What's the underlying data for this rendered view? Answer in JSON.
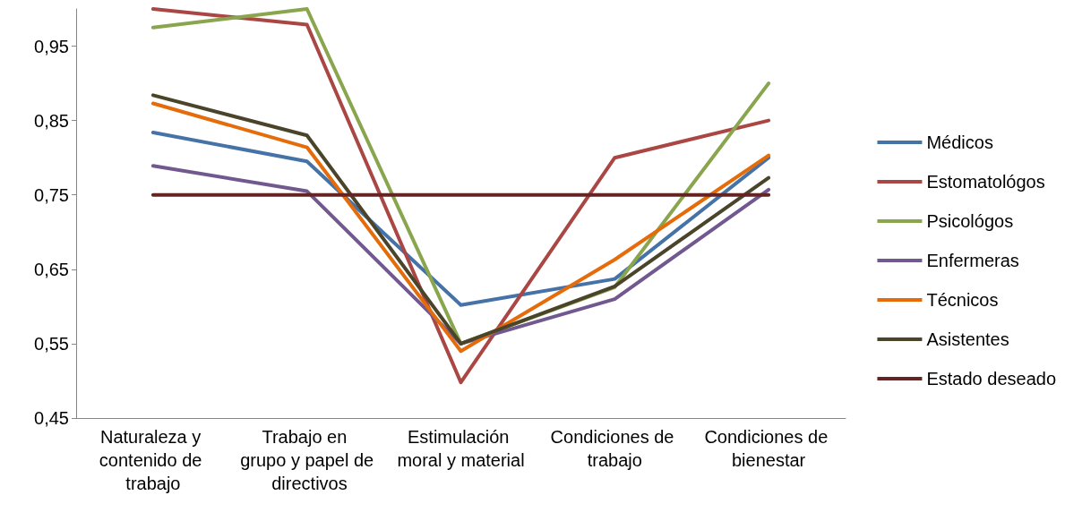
{
  "chart_data": {
    "type": "line",
    "categories": [
      "Naturaleza y contenido de trabajo",
      "Trabajo en grupo y papel de directivos",
      "Estimulación moral y material",
      "Condiciones de trabajo",
      "Condiciones de bienestar"
    ],
    "series": [
      {
        "name": "Médicos",
        "color": "#4572a7",
        "values": [
          0.834,
          0.795,
          0.602,
          0.637,
          0.8
        ]
      },
      {
        "name": "Estomatológos",
        "color": "#aa4643",
        "values": [
          1.0,
          0.979,
          0.498,
          0.8,
          0.85
        ]
      },
      {
        "name": "Psicológos",
        "color": "#89a54e",
        "values": [
          0.975,
          1.0,
          0.55,
          0.626,
          0.9
        ]
      },
      {
        "name": "Enfermeras",
        "color": "#71588f",
        "values": [
          0.789,
          0.755,
          0.55,
          0.61,
          0.757
        ]
      },
      {
        "name": "Técnicos",
        "color": "#e46c0a",
        "values": [
          0.873,
          0.814,
          0.54,
          0.663,
          0.803
        ]
      },
      {
        "name": "Asistentes",
        "color": "#4a452a",
        "values": [
          0.884,
          0.83,
          0.55,
          0.627,
          0.773
        ]
      },
      {
        "name": "Estado deseado",
        "color": "#632423",
        "values": [
          0.75,
          0.75,
          0.75,
          0.75,
          0.75
        ]
      }
    ],
    "ylim": [
      0.45,
      1.0
    ],
    "yticks": [
      {
        "value": 0.45,
        "label": "0,45"
      },
      {
        "value": 0.55,
        "label": "0,55"
      },
      {
        "value": 0.65,
        "label": "0,65"
      },
      {
        "value": 0.75,
        "label": "0,75"
      },
      {
        "value": 0.85,
        "label": "0,85"
      },
      {
        "value": 0.95,
        "label": "0,95"
      }
    ],
    "grid": false,
    "legend": "right",
    "marker": "none",
    "line_style": "solid"
  }
}
